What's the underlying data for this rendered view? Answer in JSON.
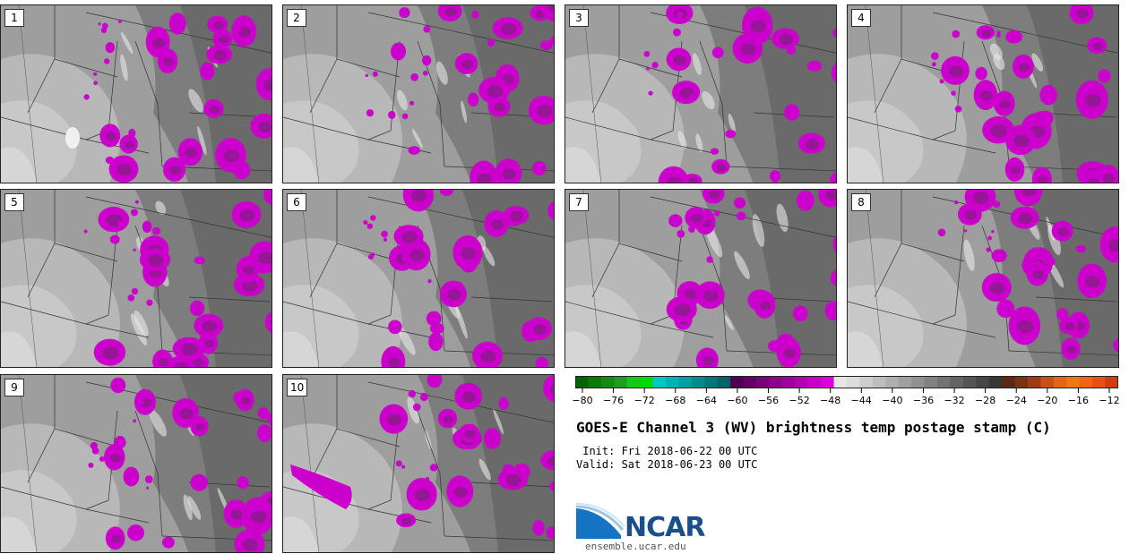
{
  "panels": [
    {
      "number": "1"
    },
    {
      "number": "2"
    },
    {
      "number": "3"
    },
    {
      "number": "4"
    },
    {
      "number": "5"
    },
    {
      "number": "6"
    },
    {
      "number": "7"
    },
    {
      "number": "8"
    },
    {
      "number": "9"
    },
    {
      "number": "10"
    }
  ],
  "colorbar": {
    "ticks": [
      "−80",
      "−76",
      "−72",
      "−68",
      "−64",
      "−60",
      "−56",
      "−52",
      "−48",
      "−44",
      "−40",
      "−36",
      "−32",
      "−28",
      "−24",
      "−20",
      "−16",
      "−12"
    ],
    "colors": [
      "#006400",
      "#0a7a0a",
      "#148c14",
      "#1e9e1e",
      "#14c814",
      "#00dc00",
      "#00c8c8",
      "#00b4b4",
      "#00a0a0",
      "#008c8c",
      "#007878",
      "#006464",
      "#500050",
      "#640064",
      "#780078",
      "#8c008c",
      "#a000a0",
      "#b400b4",
      "#c800c8",
      "#dc00dc",
      "#e6e6e6",
      "#dcdcdc",
      "#cdcdcd",
      "#bebebe",
      "#afafaf",
      "#a0a0a0",
      "#919191",
      "#828282",
      "#737373",
      "#646464",
      "#555555",
      "#464646",
      "#373737",
      "#5a2814",
      "#783214",
      "#a03c14",
      "#c85014",
      "#e66414",
      "#f07814",
      "#f06414",
      "#e65014",
      "#d23c14"
    ]
  },
  "title": "GOES-E Channel 3 (WV) brightness temp postage stamp (C)",
  "init_text": " Init: Fri 2018-06-22 00 UTC",
  "valid_text": "Valid: Sat 2018-06-23 00 UTC",
  "logo": {
    "text": "NCAR",
    "url": "ensemble.ucar.edu"
  },
  "colors": {
    "cold_cloud": "#cc00cc",
    "dark_cloud": "#8a1a8a",
    "land_light": "#cfcfcf",
    "land_dark": "#6e6e6e"
  }
}
